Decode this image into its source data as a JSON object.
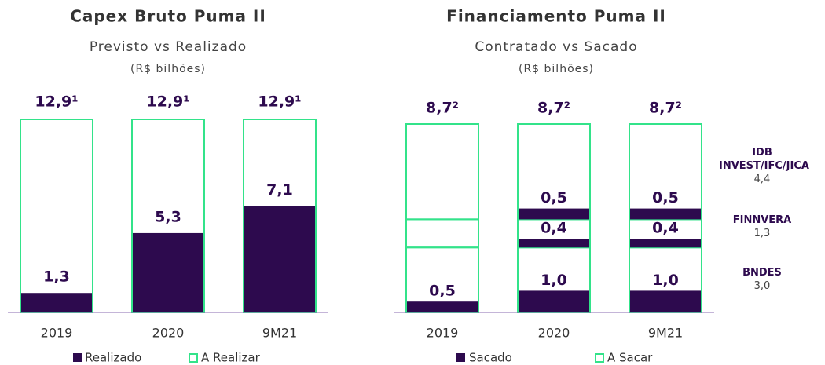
{
  "chart_data": [
    {
      "type": "bar",
      "title": "Capex Bruto Puma II",
      "subtitle": "Previsto vs Realizado",
      "unit": "(R$ bilhões)",
      "categories": [
        "2019",
        "2020",
        "9M21"
      ],
      "ylim": [
        0,
        12.9
      ],
      "totals": [
        12.9,
        12.9,
        12.9
      ],
      "total_labels": [
        "12,9¹",
        "12,9¹",
        "12,9¹"
      ],
      "series": [
        {
          "name": "Realizado",
          "color": "#2d0a4e",
          "values": [
            1.3,
            5.3,
            7.1
          ],
          "value_labels": [
            "1,3",
            "5,3",
            "7,1"
          ]
        },
        {
          "name": "A Realizar",
          "color": "#33e38a"
        }
      ]
    },
    {
      "type": "bar",
      "title": "Financiamento Puma II",
      "subtitle": "Contratado vs Sacado",
      "unit": "(R$ bilhões)",
      "categories": [
        "2019",
        "2020",
        "9M21"
      ],
      "ylim": [
        0,
        8.7
      ],
      "totals": [
        8.7,
        8.7,
        8.7
      ],
      "total_labels": [
        "8,7²",
        "8,7²",
        "8,7²"
      ],
      "series": [
        {
          "name": "Sacado",
          "color": "#2d0a4e"
        },
        {
          "name": "A Sacar",
          "color": "#33e38a"
        }
      ],
      "tranches": [
        {
          "name": "BNDES",
          "amount": 3.0,
          "amount_label": "3,0",
          "values": [
            0.5,
            1.0,
            1.0
          ],
          "value_labels": [
            "0,5",
            "1,0",
            "1,0"
          ]
        },
        {
          "name": "FINNVERA",
          "amount": 1.3,
          "amount_label": "1,3",
          "values": [
            0,
            0.4,
            0.4
          ],
          "value_labels": [
            null,
            "0,4",
            "0,4"
          ]
        },
        {
          "name": "IDB INVEST/IFC/JICA",
          "amount": 4.4,
          "amount_label": "4,4",
          "values": [
            0,
            0.5,
            0.5
          ],
          "value_labels": [
            null,
            "0,5",
            "0,5"
          ]
        }
      ]
    }
  ]
}
